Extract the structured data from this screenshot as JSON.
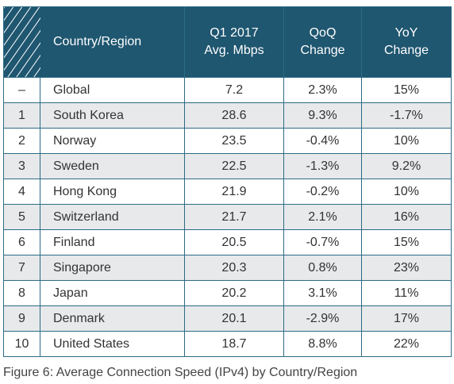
{
  "table": {
    "header": [
      [
        "Country/Region"
      ],
      [
        "Q1 2017",
        "Avg. Mbps"
      ],
      [
        "QoQ",
        "Change"
      ],
      [
        "YoY",
        "Change"
      ]
    ],
    "rows": [
      [
        "–",
        "Global",
        "7.2",
        "2.3%",
        "15%"
      ],
      [
        "1",
        "South Korea",
        "28.6",
        "9.3%",
        "-1.7%"
      ],
      [
        "2",
        "Norway",
        "23.5",
        "-0.4%",
        "10%"
      ],
      [
        "3",
        "Sweden",
        "22.5",
        "-1.3%",
        "9.2%"
      ],
      [
        "4",
        "Hong Kong",
        "21.9",
        "-0.2%",
        "10%"
      ],
      [
        "5",
        "Switzerland",
        "21.7",
        "2.1%",
        "16%"
      ],
      [
        "6",
        "Finland",
        "20.5",
        "-0.7%",
        "15%"
      ],
      [
        "7",
        "Singapore",
        "20.3",
        "0.8%",
        "23%"
      ],
      [
        "8",
        "Japan",
        "20.2",
        "3.1%",
        "11%"
      ],
      [
        "9",
        "Denmark",
        "20.1",
        "-2.9%",
        "17%"
      ],
      [
        "10",
        "United States",
        "18.7",
        "8.8%",
        "22%"
      ]
    ]
  },
  "caption": "Figure 6: Average Connection Speed (IPv4) by Country/Region"
}
